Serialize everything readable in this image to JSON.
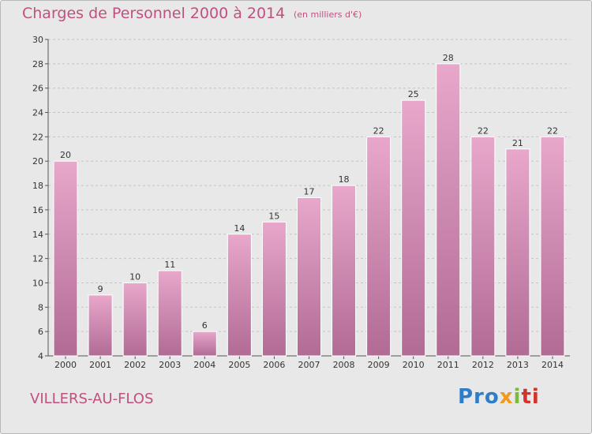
{
  "header": {
    "title": "Charges de Personnel 2000 à 2014",
    "subtitle": "(en milliers d'€)"
  },
  "footer": {
    "place": "VILLERS-AU-FLOS",
    "logo_parts": [
      "Pro",
      "x",
      "i",
      "ti"
    ]
  },
  "colors": {
    "bar_top": "#e8a7cb",
    "bar_bottom": "#b16b95",
    "text_accent": "#c0507f"
  },
  "chart_data": {
    "type": "bar",
    "title": "Charges de Personnel 2000 à 2014",
    "subtitle": "(en milliers d'€)",
    "categories": [
      "2000",
      "2001",
      "2002",
      "2003",
      "2004",
      "2005",
      "2006",
      "2007",
      "2008",
      "2009",
      "2010",
      "2011",
      "2012",
      "2013",
      "2014"
    ],
    "values": [
      20,
      9,
      10,
      11,
      6,
      14,
      15,
      17,
      18,
      22,
      25,
      28,
      22,
      21,
      22
    ],
    "data_labels": [
      "20",
      "9",
      "10",
      "11",
      "6",
      "14",
      "15",
      "17",
      "18",
      "22",
      "25",
      "28",
      "22",
      "21",
      "22"
    ],
    "ylim": [
      4,
      30
    ],
    "yticks": [
      4,
      6,
      8,
      10,
      12,
      14,
      16,
      18,
      20,
      22,
      24,
      26,
      28,
      30
    ],
    "ytick_labels": [
      "4",
      "6",
      "8",
      "10",
      "12",
      "14",
      "16",
      "18",
      "20",
      "22",
      "24",
      "26",
      "28",
      "30"
    ],
    "grid": true,
    "legend": "none"
  }
}
